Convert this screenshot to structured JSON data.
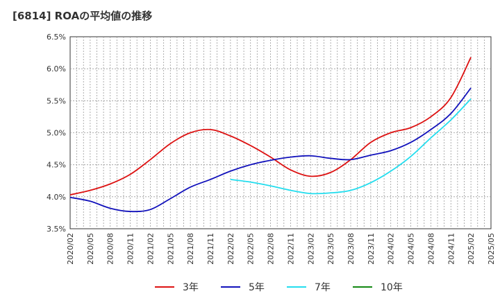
{
  "chart_data": {
    "type": "line",
    "title": "[6814]  ROAの平均値の推移",
    "xlabel": "",
    "ylabel": "",
    "ylim": [
      3.5,
      6.5
    ],
    "yticks": [
      3.5,
      4.0,
      4.5,
      5.0,
      5.5,
      6.0,
      6.5
    ],
    "ytick_labels": [
      "3.5%",
      "4.0%",
      "4.5%",
      "5.0%",
      "5.5%",
      "6.0%",
      "6.5%"
    ],
    "x_start": "2020/02",
    "x_count": 64,
    "xtick_labels": [
      "2020/02",
      "2020/05",
      "2020/08",
      "2020/11",
      "2021/02",
      "2021/05",
      "2021/08",
      "2021/11",
      "2022/02",
      "2022/05",
      "2022/08",
      "2022/11",
      "2023/02",
      "2023/05",
      "2023/08",
      "2023/11",
      "2024/02",
      "2024/05",
      "2024/08",
      "2024/11",
      "2025/02",
      "2025/05"
    ],
    "grid": true,
    "legend_position": "bottom",
    "series": [
      {
        "name": "3年",
        "color": "#dd1111",
        "start": "2020/02",
        "points": [
          [
            "2020/02",
            4.03
          ],
          [
            "2020/05",
            4.1
          ],
          [
            "2020/08",
            4.2
          ],
          [
            "2020/11",
            4.35
          ],
          [
            "2021/02",
            4.58
          ],
          [
            "2021/05",
            4.83
          ],
          [
            "2021/08",
            5.0
          ],
          [
            "2021/11",
            5.05
          ],
          [
            "2022/02",
            4.95
          ],
          [
            "2022/05",
            4.8
          ],
          [
            "2022/08",
            4.62
          ],
          [
            "2022/11",
            4.42
          ],
          [
            "2023/02",
            4.32
          ],
          [
            "2023/05",
            4.38
          ],
          [
            "2023/08",
            4.58
          ],
          [
            "2023/11",
            4.85
          ],
          [
            "2024/02",
            5.0
          ],
          [
            "2024/05",
            5.08
          ],
          [
            "2024/08",
            5.25
          ],
          [
            "2024/11",
            5.55
          ],
          [
            "2025/02",
            6.18
          ]
        ]
      },
      {
        "name": "5年",
        "color": "#1111bb",
        "start": "2020/02",
        "points": [
          [
            "2020/02",
            3.99
          ],
          [
            "2020/05",
            3.93
          ],
          [
            "2020/08",
            3.82
          ],
          [
            "2020/11",
            3.77
          ],
          [
            "2021/02",
            3.8
          ],
          [
            "2021/05",
            3.97
          ],
          [
            "2021/08",
            4.15
          ],
          [
            "2021/11",
            4.27
          ],
          [
            "2022/02",
            4.4
          ],
          [
            "2022/05",
            4.5
          ],
          [
            "2022/08",
            4.57
          ],
          [
            "2022/11",
            4.62
          ],
          [
            "2023/02",
            4.64
          ],
          [
            "2023/05",
            4.6
          ],
          [
            "2023/08",
            4.58
          ],
          [
            "2023/11",
            4.65
          ],
          [
            "2024/02",
            4.72
          ],
          [
            "2024/05",
            4.85
          ],
          [
            "2024/08",
            5.05
          ],
          [
            "2024/11",
            5.3
          ],
          [
            "2025/02",
            5.7
          ]
        ]
      },
      {
        "name": "7年",
        "color": "#22ddee",
        "start": "2022/02",
        "points": [
          [
            "2022/02",
            4.27
          ],
          [
            "2022/05",
            4.23
          ],
          [
            "2022/08",
            4.17
          ],
          [
            "2022/11",
            4.1
          ],
          [
            "2023/02",
            4.05
          ],
          [
            "2023/05",
            4.06
          ],
          [
            "2023/08",
            4.1
          ],
          [
            "2023/11",
            4.22
          ],
          [
            "2024/02",
            4.4
          ],
          [
            "2024/05",
            4.63
          ],
          [
            "2024/08",
            4.92
          ],
          [
            "2024/11",
            5.2
          ],
          [
            "2025/02",
            5.53
          ]
        ]
      },
      {
        "name": "10年",
        "color": "#118811",
        "start": "",
        "points": []
      }
    ]
  }
}
